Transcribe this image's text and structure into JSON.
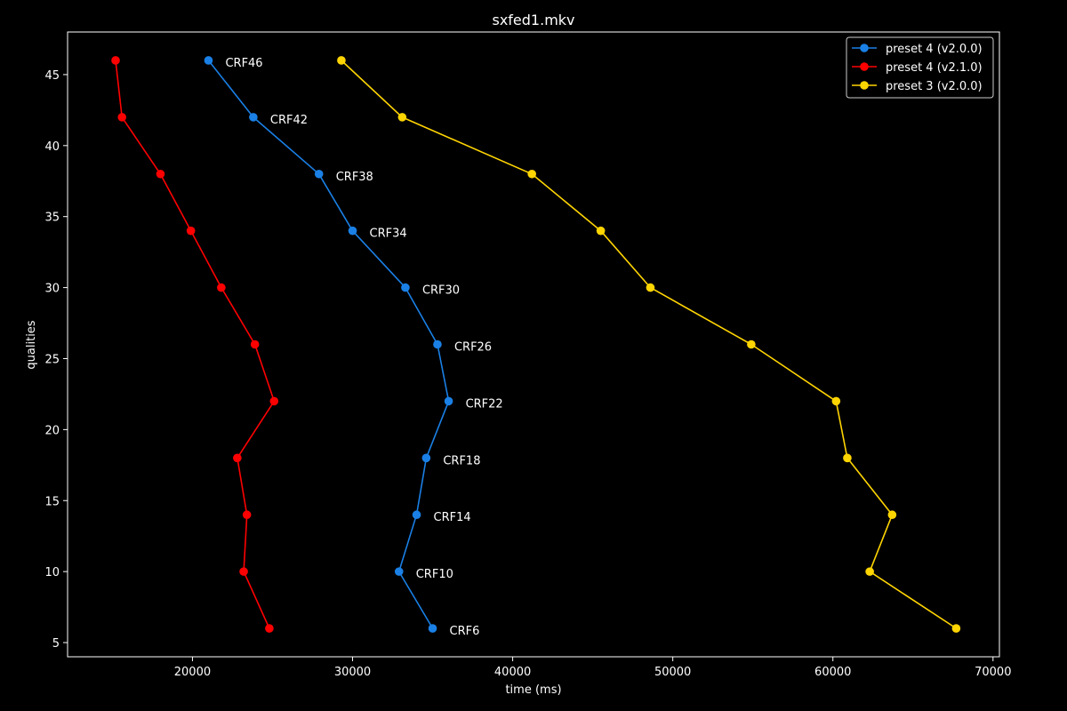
{
  "chart_data": {
    "type": "line",
    "title": "sxfed1.mkv",
    "xlabel": "time (ms)",
    "ylabel": "qualities",
    "xlim": [
      12200,
      70400
    ],
    "ylim": [
      4.0,
      48.0
    ],
    "xticks": [
      20000,
      30000,
      40000,
      50000,
      60000,
      70000
    ],
    "yticks": [
      5,
      10,
      15,
      20,
      25,
      30,
      35,
      40,
      45
    ],
    "grid": false,
    "legend_position": "top-right",
    "series": [
      {
        "name": "preset 4 (v2.0.0)",
        "color": "#1a80e6",
        "x": [
          21000,
          23800,
          27900,
          30000,
          33300,
          35300,
          36000,
          34600,
          34000,
          32900,
          35000
        ],
        "y": [
          46,
          42,
          38,
          34,
          30,
          26,
          22,
          18,
          14,
          10,
          6
        ],
        "annotations": [
          "CRF46",
          "CRF42",
          "CRF38",
          "CRF34",
          "CRF30",
          "CRF26",
          "CRF22",
          "CRF18",
          "CRF14",
          "CRF10",
          "CRF6"
        ]
      },
      {
        "name": "preset 4 (v2.1.0)",
        "color": "#ff0000",
        "x": [
          15200,
          15600,
          18000,
          19900,
          21800,
          23900,
          25100,
          22800,
          23400,
          23200,
          24800
        ],
        "y": [
          46,
          42,
          38,
          34,
          30,
          26,
          22,
          18,
          14,
          10,
          6
        ]
      },
      {
        "name": "preset 3 (v2.0.0)",
        "color": "#ffd500",
        "x": [
          29300,
          33100,
          41200,
          45500,
          48600,
          54900,
          60200,
          60900,
          63700,
          62300,
          67700
        ],
        "y": [
          46,
          42,
          38,
          34,
          30,
          26,
          22,
          18,
          14,
          10,
          6
        ]
      }
    ]
  }
}
